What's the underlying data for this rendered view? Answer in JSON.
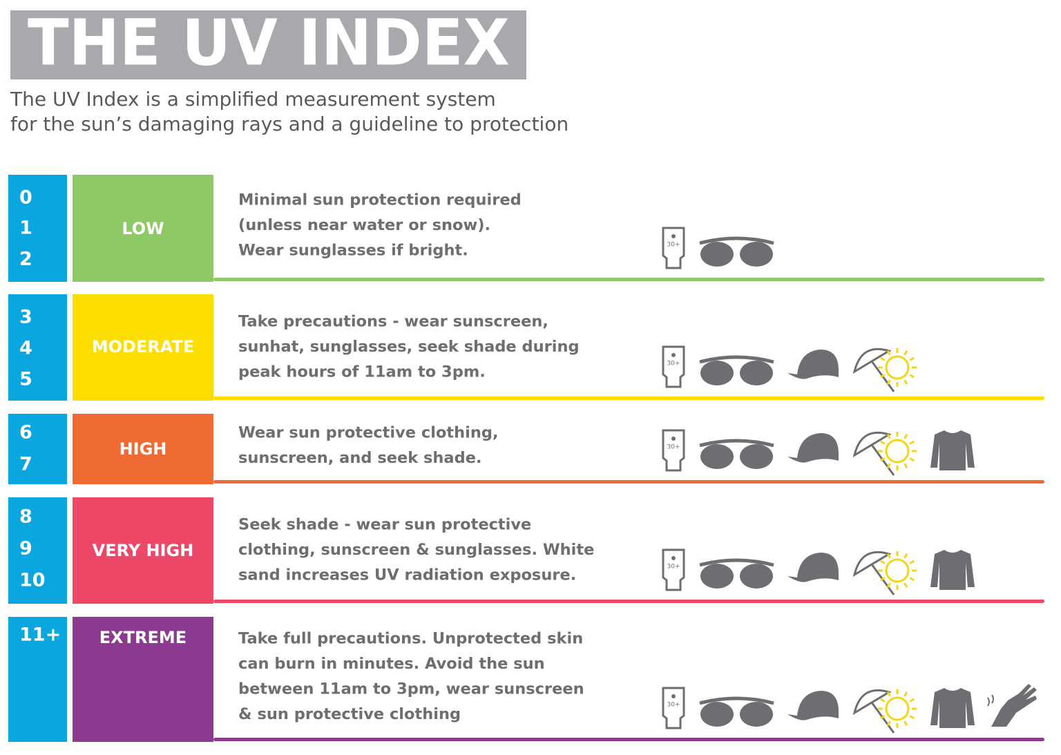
{
  "header": {
    "title": "THE UV INDEX",
    "subtitle": [
      "The UV Index is a simplified measurement system",
      "for the sun’s damaging rays and a guideline to protection"
    ]
  },
  "sunscreen_label": "30+",
  "rows": [
    {
      "numbers": [
        "0",
        "1",
        "2"
      ],
      "level": "LOW",
      "color": "#8dc965",
      "description": [
        "Minimal sun protection required",
        "(unless near water or snow).",
        "Wear sunglasses if bright."
      ]
    },
    {
      "numbers": [
        "3",
        "4",
        "5"
      ],
      "level": "MODERATE",
      "color": "#fcdf00",
      "description": [
        "Take precautions - wear sunscreen,",
        "sunhat, sunglasses, seek shade during",
        "peak hours of 11am to 3pm."
      ]
    },
    {
      "numbers": [
        "6",
        "7"
      ],
      "level": "HIGH",
      "color": "#f06a34",
      "description": [
        "Wear sun protective clothing,",
        "sunscreen, and seek shade."
      ]
    },
    {
      "numbers": [
        "8",
        "9",
        "10"
      ],
      "level": "VERY HIGH",
      "color": "#ee4868",
      "description": [
        "Seek shade - wear sun protective",
        "clothing, sunscreen & sunglasses. White",
        "sand increases UV radiation exposure."
      ]
    },
    {
      "numbers": [
        "11+"
      ],
      "level": "EXTREME",
      "color": "#8b3a8f",
      "description": [
        "Take full precautions. Unprotected skin",
        "can burn in minutes. Avoid the sun",
        "between 11am to 3pm, wear sunscreen",
        "& sun protective clothing"
      ]
    }
  ]
}
